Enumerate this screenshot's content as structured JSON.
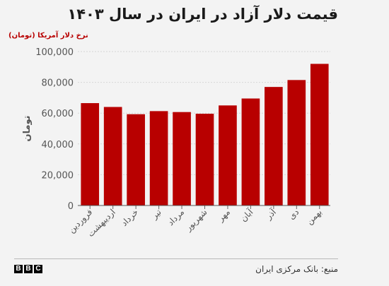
{
  "header": {
    "title": "قیمت دلار آزاد در ایران در سال ۱۴۰۳",
    "subtitle": "نرخ دلار آمریکا (تومان)"
  },
  "footer": {
    "source": "منبع: بانک مرکزی ایران",
    "logo_letters": [
      "B",
      "B",
      "C"
    ]
  },
  "colors": {
    "bar": "#b80000",
    "axis_text": "#555555",
    "grid": "#d6d6d6",
    "background": "#f3f3f3"
  },
  "chart_data": {
    "type": "bar",
    "title": "قیمت دلار آزاد در ایران در سال ۱۴۰۳",
    "subtitle": "نرخ دلار آمریکا (تومان)",
    "xlabel": "",
    "ylabel": "تومان",
    "categories": [
      "فروردین",
      "اردیبهشت",
      "خرداد",
      "تیر",
      "مرداد",
      "شهریور",
      "مهر",
      "آبان",
      "آذر",
      "دی",
      "بهمن"
    ],
    "values": [
      66500,
      64000,
      59300,
      61300,
      60700,
      59600,
      65000,
      69500,
      77000,
      81500,
      92000
    ],
    "ylim": [
      0,
      100000
    ],
    "yticks": [
      0,
      20000,
      40000,
      60000,
      80000,
      100000
    ],
    "ytick_labels": [
      "0",
      "20,000",
      "40,000",
      "60,000",
      "80,000",
      "100,000"
    ],
    "grid": true,
    "legend": "none"
  }
}
